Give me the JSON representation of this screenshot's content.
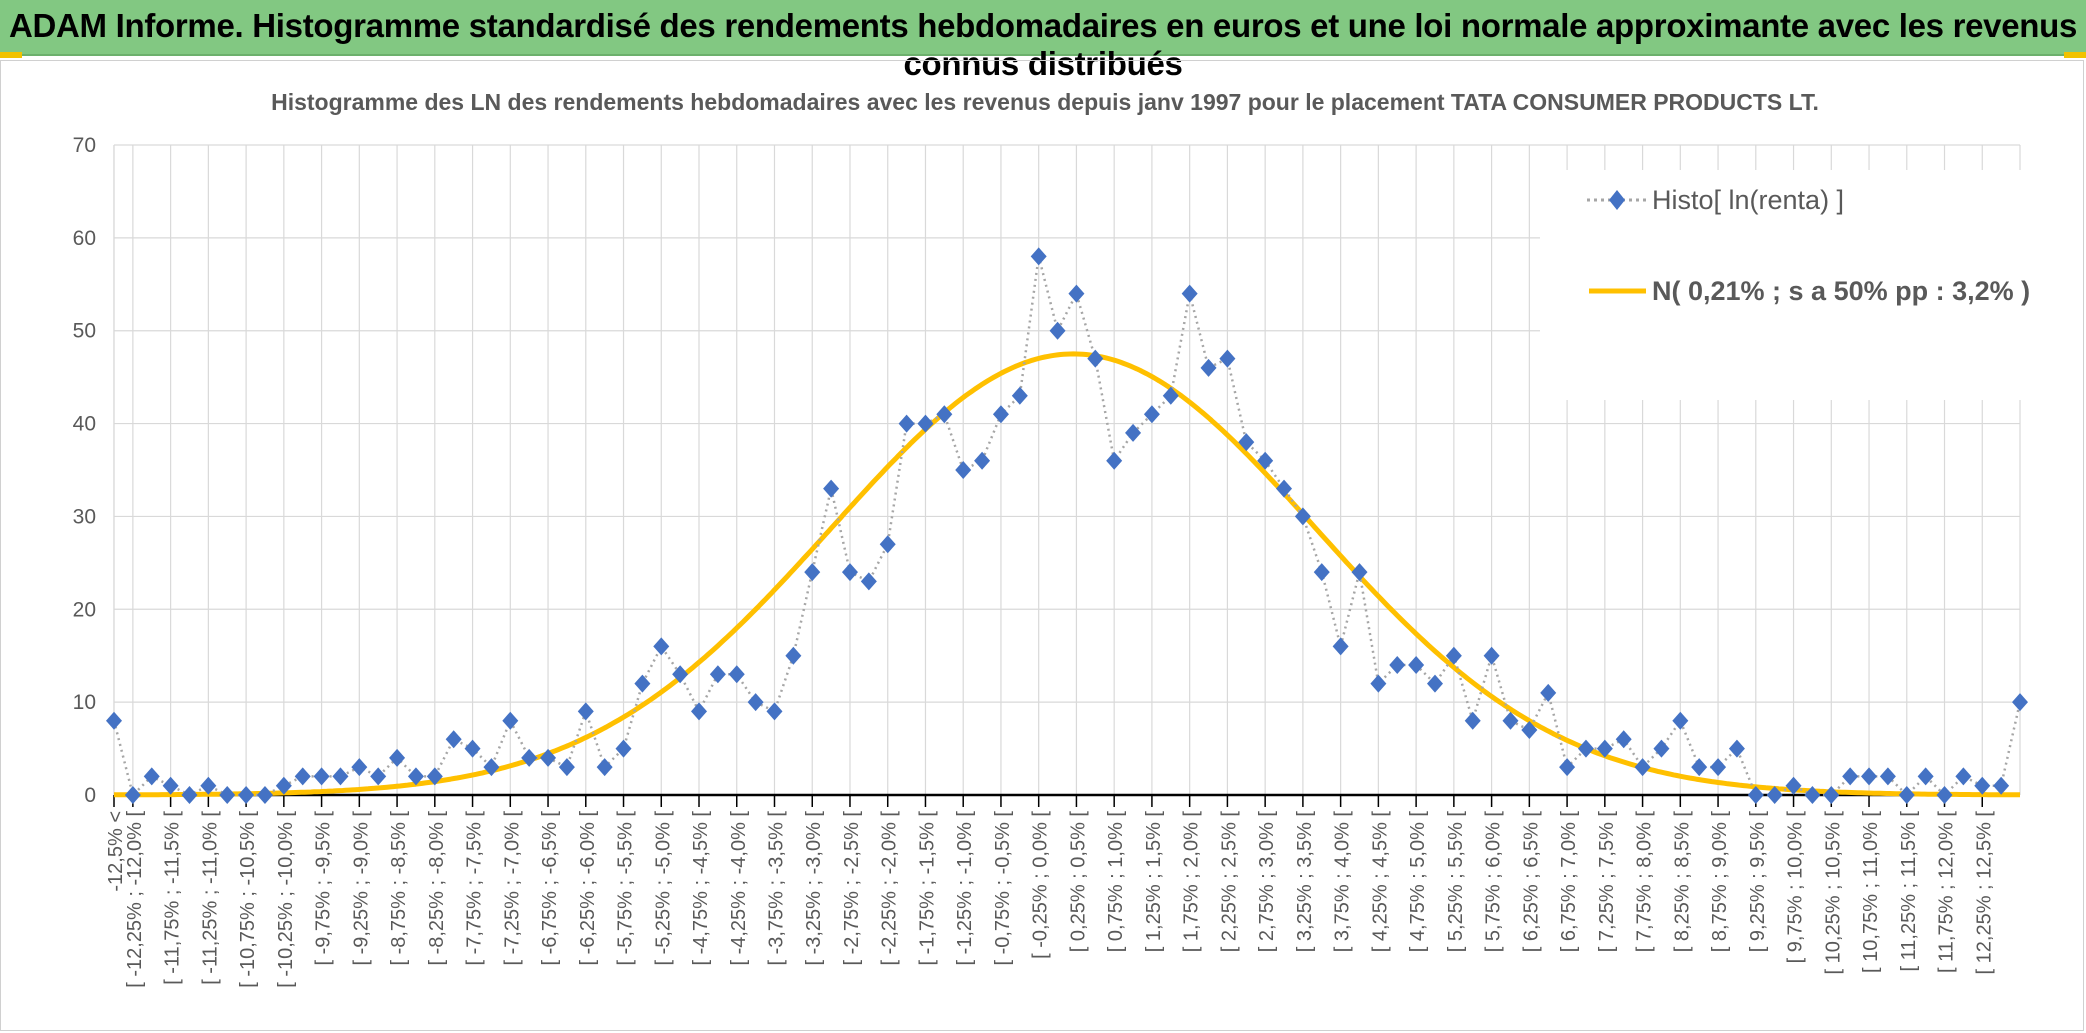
{
  "banner": {
    "title": "ADAM Informe. Histogramme standardisé des rendements hebdomadaires en euros et une loi normale approximante avec les revenus connus distribués"
  },
  "colors": {
    "banner_bg": "#82c882",
    "accent": "#f2c200",
    "histo": "#4472c4",
    "normal": "#ffc000",
    "grid": "#d9d9d9",
    "text": "#595959"
  },
  "chart_data": {
    "type": "line",
    "title": "Histogramme des LN des rendements hebdomadaires avec les revenus depuis janv 1997 pour le placement TATA CONSUMER PRODUCTS LT.",
    "xlabel": "",
    "ylabel": "",
    "ylim": [
      0,
      70
    ],
    "yticks": [
      0,
      10,
      20,
      30,
      40,
      50,
      60,
      70
    ],
    "grid": true,
    "legend_position": "top-right",
    "x_labels": [
      "-12,5% <",
      "[ -12,25% ; -12,0% [",
      "[ -11,75% ; -11,5% [",
      "[ -11,25% ; -11,0% [",
      "[ -10,75% ; -10,5% [",
      "[ -10,25% ; -10,0% [",
      "[ -9,75% ; -9,5% [",
      "[ -9,25% ; -9,0% [",
      "[ -8,75% ; -8,5% [",
      "[ -8,25% ; -8,0% [",
      "[ -7,75% ; -7,5% [",
      "[ -7,25% ; -7,0% [",
      "[ -6,75% ; -6,5% [",
      "[ -6,25% ; -6,0% [",
      "[ -5,75% ; -5,5% [",
      "[ -5,25% ; -5,0% [",
      "[ -4,75% ; -4,5% [",
      "[ -4,25% ; -4,0% [",
      "[ -3,75% ; -3,5% [",
      "[ -3,25% ; -3,0% [",
      "[ -2,75% ; -2,5% [",
      "[ -2,25% ; -2,0% [",
      "[ -1,75% ; -1,5% [",
      "[ -1,25% ; -1,0% [",
      "[ -0,75% ; -0,5% [",
      "[ -0,25% ; 0,0% [",
      "[ 0,25% ; 0,5% [",
      "[ 0,75% ; 1,0% [",
      "[ 1,25% ; 1,5% [",
      "[ 1,75% ; 2,0% [",
      "[ 2,25% ; 2,5% [",
      "[ 2,75% ; 3,0% [",
      "[ 3,25% ; 3,5% [",
      "[ 3,75% ; 4,0% [",
      "[ 4,25% ; 4,5% [",
      "[ 4,75% ; 5,0% [",
      "[ 5,25% ; 5,5% [",
      "[ 5,75% ; 6,0% [",
      "[ 6,25% ; 6,5% [",
      "[ 6,75% ; 7,0% [",
      "[ 7,25% ; 7,5% [",
      "[ 7,75% ; 8,0% [",
      "[ 8,25% ; 8,5% [",
      "[ 8,75% ; 9,0% [",
      "[ 9,25% ; 9,5% [",
      "[ 9,75% ; 10,0% [",
      "[ 10,25% ; 10,5% [",
      "[ 10,75% ; 11,0% [",
      "[ 11,25% ; 11,5% [",
      "[ 11,75% ; 12,0% [",
      "[ 12,25% ; 12,5% ["
    ],
    "series": [
      {
        "name": "Histo[ ln(renta) ]",
        "style": "dotted-line-diamond-markers",
        "values": [
          8,
          0,
          2,
          1,
          0,
          1,
          0,
          0,
          0,
          1,
          2,
          2,
          2,
          3,
          2,
          4,
          2,
          2,
          6,
          5,
          3,
          8,
          4,
          4,
          3,
          9,
          3,
          5,
          12,
          16,
          13,
          9,
          13,
          13,
          10,
          9,
          15,
          24,
          33,
          24,
          23,
          27,
          40,
          40,
          41,
          35,
          36,
          41,
          43,
          58,
          50,
          54,
          47,
          36,
          39,
          41,
          43,
          54,
          46,
          47,
          38,
          36,
          33,
          30,
          24,
          16,
          24,
          12,
          14,
          14,
          12,
          15,
          8,
          15,
          8,
          7,
          11,
          3,
          5,
          5,
          6,
          3,
          5,
          8,
          3,
          3,
          5,
          0,
          0,
          1,
          0,
          0,
          2,
          2,
          2,
          0,
          2,
          0,
          2,
          1,
          1,
          10
        ]
      },
      {
        "name": "N( 0,21% ; s a 50% pp : 3,2% )",
        "style": "smooth-line",
        "mean_percent": 0.21,
        "sd_percent": 3.2,
        "peak": 47.5
      }
    ]
  }
}
